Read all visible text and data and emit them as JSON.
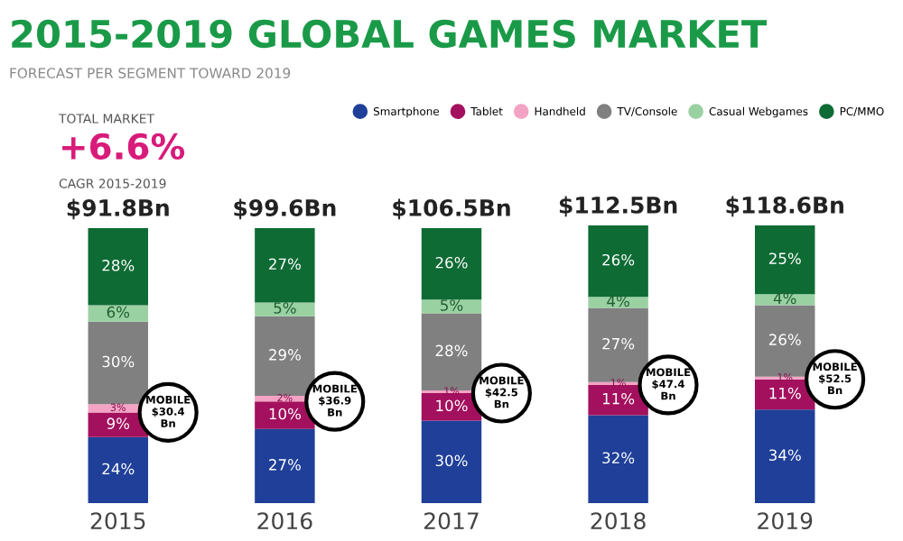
{
  "chart_data": {
    "type": "bar",
    "title": "2015-2019 GLOBAL GAMES MARKET",
    "subtitle": "FORECAST PER SEGMENT TOWARD 2019",
    "categories": [
      "2015",
      "2016",
      "2017",
      "2018",
      "2019"
    ],
    "stacked": true,
    "legend": "top right",
    "grid": false,
    "series": [
      {
        "name": "Smartphone",
        "color": "#1f3f99",
        "values": [
          24,
          27,
          30,
          32,
          34
        ],
        "value_labels": [
          "24%",
          "27%",
          "30%",
          "32%",
          "34%"
        ]
      },
      {
        "name": "Tablet",
        "color": "#a3105e",
        "values": [
          9,
          10,
          10,
          11,
          11
        ],
        "value_labels": [
          "9%",
          "10%",
          "10%",
          "11%",
          "11%"
        ]
      },
      {
        "name": "Handheld",
        "color": "#f4a3c4",
        "values": [
          3,
          2,
          1,
          1,
          1
        ],
        "value_labels": [
          "3%",
          "2%",
          "1%",
          "1%",
          "1%"
        ]
      },
      {
        "name": "TV/Console",
        "color": "#808080",
        "values": [
          30,
          29,
          28,
          27,
          26
        ],
        "value_labels": [
          "30%",
          "29%",
          "28%",
          "27%",
          "26%"
        ]
      },
      {
        "name": "Casual Webgames",
        "color": "#9ad1a2",
        "values": [
          6,
          5,
          5,
          4,
          4
        ],
        "value_labels": [
          "6%",
          "5%",
          "5%",
          "4%",
          "4%"
        ]
      },
      {
        "name": "PC/MMO",
        "color": "#0e6b34",
        "values": [
          28,
          27,
          26,
          26,
          25
        ],
        "value_labels": [
          "28%",
          "27%",
          "26%",
          "26%",
          "25%"
        ]
      }
    ],
    "annotations": [
      "TOTAL MARKET",
      "+6.6%",
      "CAGR 2015-2019",
      {
        "text": "$91.8Bn",
        "x": "2015",
        "y": 100
      },
      {
        "text": "$99.6Bn",
        "x": "2016",
        "y": 100
      },
      {
        "text": "$106.5Bn",
        "x": "2017",
        "y": 100
      },
      {
        "text": "$112.5Bn",
        "x": "2018",
        "y": 101
      },
      {
        "text": "$118.6Bn",
        "x": "2019",
        "y": 101
      },
      {
        "text": "MOBILE\n$30.4\nBn",
        "x": "2015",
        "y": 33
      },
      {
        "text": "MOBILE\n$36.9\nBn",
        "x": "2016",
        "y": 37
      },
      {
        "text": "MOBILE\n$42.5\nBn",
        "x": "2017",
        "y": 40
      },
      {
        "text": "MOBILE\n$47.4\nBn",
        "x": "2018",
        "y": 43
      },
      {
        "text": "MOBILE\n$52.5\nBn",
        "x": "2019",
        "y": 45
      }
    ]
  }
}
